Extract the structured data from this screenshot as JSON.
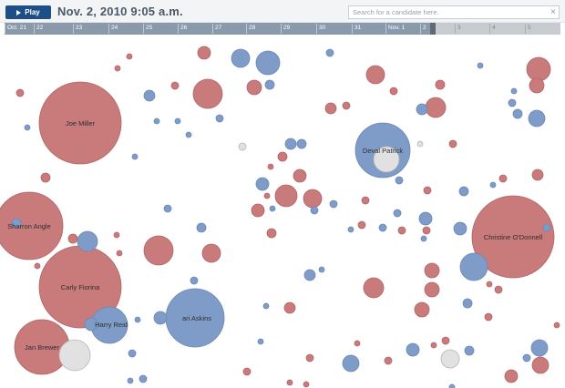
{
  "controls": {
    "play_label": "Play",
    "date": "Nov. 2, 2010 9:05 a.m.",
    "search_placeholder": "Search for a candidate here.",
    "clear_symbol": "×"
  },
  "colors": {
    "red": "#c97a7b",
    "blue": "#7f9cc9",
    "gray": "#e1e1e1",
    "timeline": "#8a9aab",
    "timeline_future": "#c8ccd0",
    "play_button": "#1d4f86"
  },
  "timeline": {
    "ticks": [
      "Oct. 21",
      "22",
      "23",
      "24",
      "25",
      "26",
      "27",
      "28",
      "29",
      "30",
      "31",
      "Nov. 1",
      "2",
      "3",
      "4",
      "5"
    ],
    "current_index": 12,
    "progress": 0.77
  },
  "candidates": [
    {
      "name": "Joe Miller",
      "party": "R"
    },
    {
      "name": "Sharron Angle",
      "party": "R"
    },
    {
      "name": "Carly Fiorina",
      "party": "R"
    },
    {
      "name": "Harry Reid",
      "party": "D"
    },
    {
      "name": "Bari Askins",
      "party": "D"
    },
    {
      "name": "Jan Brewer",
      "party": "R"
    },
    {
      "name": "Christine O'Donnell",
      "party": "R"
    },
    {
      "name": "Deval Patrick",
      "party": "D"
    }
  ],
  "visible_labels": [
    "Joe Miller",
    "Sharron Angle",
    "Carly Fiorina",
    "Harry Reid",
    "ari Askins",
    "Jan Brewer",
    "Christine O'Donnell",
    "Deval Patrick"
  ]
}
